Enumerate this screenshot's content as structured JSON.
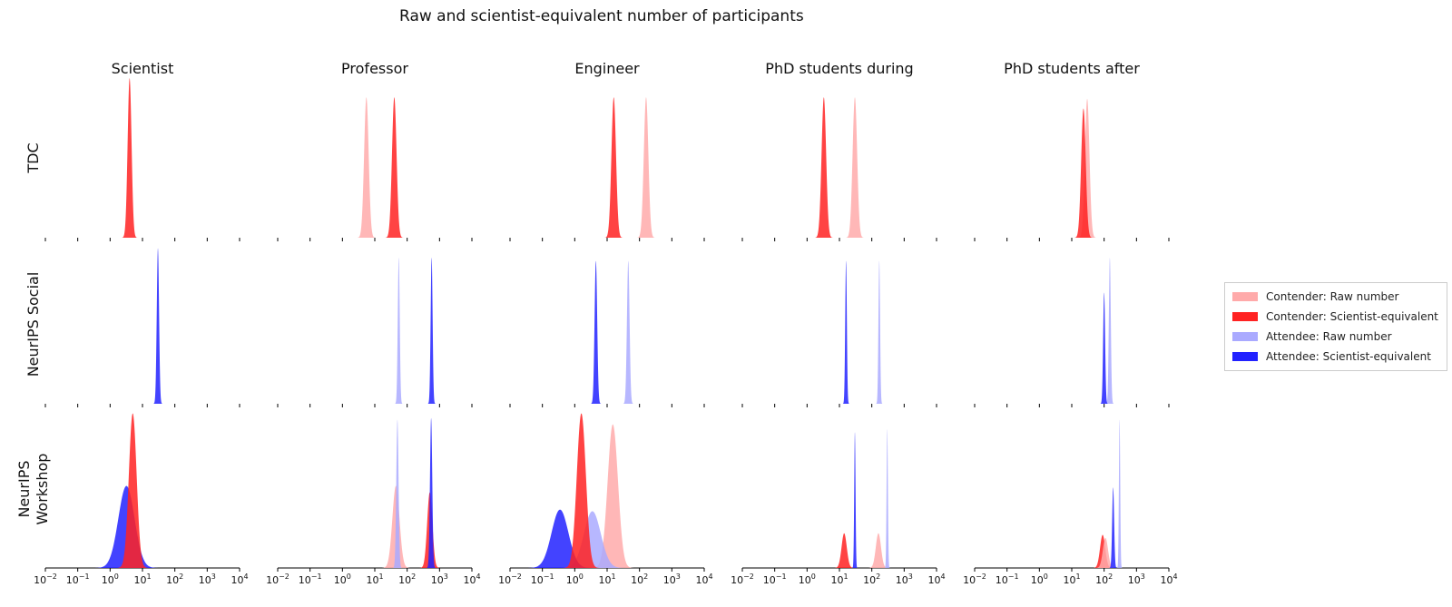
{
  "title": "Raw and scientist-equivalent number of participants",
  "colors": {
    "contender_raw": "#ffaaaa",
    "contender_sci": "#ff2222",
    "attendee_raw": "#aaaaff",
    "attendee_sci": "#2222ff"
  },
  "legend": [
    {
      "label": "Contender: Raw number",
      "color": "#ffaaaa"
    },
    {
      "label": "Contender: Scientist-equivalent",
      "color": "#ff2222"
    },
    {
      "label": "Attendee: Raw number",
      "color": "#aaaaff"
    },
    {
      "label": "Attendee: Scientist-equivalent",
      "color": "#2222ff"
    }
  ],
  "chart_data": {
    "type": "area",
    "x_scale": "log",
    "xlim": [
      0.01,
      10000
    ],
    "x_ticks": [
      0.01,
      0.1,
      1,
      10,
      100,
      1000,
      10000
    ],
    "x_tick_labels": [
      {
        "base": "10",
        "exp": "−2"
      },
      {
        "base": "10",
        "exp": "−1"
      },
      {
        "base": "10",
        "exp": "0"
      },
      {
        "base": "10",
        "exp": "1"
      },
      {
        "base": "10",
        "exp": "2"
      },
      {
        "base": "10",
        "exp": "3"
      },
      {
        "base": "10",
        "exp": "4"
      }
    ],
    "columns": [
      "Scientist",
      "Professor",
      "Engineer",
      "PhD students during",
      "PhD students after"
    ],
    "rows": [
      "TDC",
      "NeurIPS Social",
      "NeurIPS Workshop"
    ],
    "grid": false,
    "legend_position": "right",
    "panels": [
      {
        "row": 0,
        "col": 0,
        "curves": [
          {
            "series": "Contender: Scientist-equivalent",
            "mode": 4.0,
            "width": 0.06,
            "height": 1.0
          }
        ]
      },
      {
        "row": 0,
        "col": 1,
        "curves": [
          {
            "series": "Contender: Raw number",
            "mode": 5.5,
            "width": 0.07,
            "height": 0.88
          },
          {
            "series": "Contender: Scientist-equivalent",
            "mode": 40,
            "width": 0.07,
            "height": 0.88
          }
        ]
      },
      {
        "row": 0,
        "col": 2,
        "curves": [
          {
            "series": "Contender: Raw number",
            "mode": 160,
            "width": 0.07,
            "height": 0.88
          },
          {
            "series": "Contender: Scientist-equivalent",
            "mode": 16,
            "width": 0.07,
            "height": 0.88
          }
        ]
      },
      {
        "row": 0,
        "col": 3,
        "curves": [
          {
            "series": "Contender: Raw number",
            "mode": 30,
            "width": 0.07,
            "height": 0.88
          },
          {
            "series": "Contender: Scientist-equivalent",
            "mode": 3.3,
            "width": 0.07,
            "height": 0.88
          }
        ]
      },
      {
        "row": 0,
        "col": 4,
        "curves": [
          {
            "series": "Contender: Raw number",
            "mode": 30,
            "width": 0.07,
            "height": 0.87
          },
          {
            "series": "Contender: Scientist-equivalent",
            "mode": 23,
            "width": 0.07,
            "height": 0.81
          }
        ]
      },
      {
        "row": 1,
        "col": 0,
        "curves": [
          {
            "series": "Attendee: Scientist-equivalent",
            "mode": 30,
            "width": 0.035,
            "height": 0.98
          }
        ]
      },
      {
        "row": 1,
        "col": 1,
        "curves": [
          {
            "series": "Attendee: Raw number",
            "mode": 55,
            "width": 0.03,
            "height": 0.92
          },
          {
            "series": "Attendee: Scientist-equivalent",
            "mode": 570,
            "width": 0.03,
            "height": 0.92
          }
        ]
      },
      {
        "row": 1,
        "col": 2,
        "curves": [
          {
            "series": "Attendee: Raw number",
            "mode": 45,
            "width": 0.04,
            "height": 0.9
          },
          {
            "series": "Attendee: Scientist-equivalent",
            "mode": 4.5,
            "width": 0.04,
            "height": 0.9
          }
        ]
      },
      {
        "row": 1,
        "col": 3,
        "curves": [
          {
            "series": "Attendee: Raw number",
            "mode": 170,
            "width": 0.025,
            "height": 0.9
          },
          {
            "series": "Attendee: Scientist-equivalent",
            "mode": 16,
            "width": 0.025,
            "height": 0.9
          }
        ]
      },
      {
        "row": 1,
        "col": 4,
        "curves": [
          {
            "series": "Attendee: Raw number",
            "mode": 150,
            "width": 0.03,
            "height": 0.92
          },
          {
            "series": "Attendee: Scientist-equivalent",
            "mode": 100,
            "width": 0.03,
            "height": 0.7
          }
        ]
      },
      {
        "row": 2,
        "col": 0,
        "curves": [
          {
            "series": "Attendee: Scientist-equivalent",
            "mode": 3.2,
            "width": 0.25,
            "height": 0.52
          },
          {
            "series": "Contender: Scientist-equivalent",
            "mode": 5.0,
            "width": 0.12,
            "height": 0.98
          }
        ]
      },
      {
        "row": 2,
        "col": 1,
        "curves": [
          {
            "series": "Contender: Raw number",
            "mode": 45,
            "width": 0.11,
            "height": 0.52
          },
          {
            "series": "Contender: Scientist-equivalent",
            "mode": 500,
            "width": 0.08,
            "height": 0.48
          },
          {
            "series": "Attendee: Raw number",
            "mode": 50,
            "width": 0.035,
            "height": 0.94
          },
          {
            "series": "Attendee: Scientist-equivalent",
            "mode": 550,
            "width": 0.035,
            "height": 0.95
          }
        ]
      },
      {
        "row": 2,
        "col": 2,
        "curves": [
          {
            "series": "Contender: Raw number",
            "mode": 15,
            "width": 0.16,
            "height": 0.91
          },
          {
            "series": "Attendee: Raw number",
            "mode": 3.5,
            "width": 0.26,
            "height": 0.36
          },
          {
            "series": "Attendee: Scientist-equivalent",
            "mode": 0.35,
            "width": 0.26,
            "height": 0.37
          },
          {
            "series": "Contender: Scientist-equivalent",
            "mode": 1.6,
            "width": 0.14,
            "height": 0.98
          }
        ]
      },
      {
        "row": 2,
        "col": 3,
        "curves": [
          {
            "series": "Contender: Scientist-equivalent",
            "mode": 14,
            "width": 0.08,
            "height": 0.22
          },
          {
            "series": "Contender: Raw number",
            "mode": 160,
            "width": 0.08,
            "height": 0.22
          },
          {
            "series": "Attendee: Raw number",
            "mode": 300,
            "width": 0.02,
            "height": 0.88
          },
          {
            "series": "Attendee: Scientist-equivalent",
            "mode": 30,
            "width": 0.02,
            "height": 0.86
          }
        ]
      },
      {
        "row": 2,
        "col": 4,
        "curves": [
          {
            "series": "Contender: Scientist-equivalent",
            "mode": 90,
            "width": 0.08,
            "height": 0.21
          },
          {
            "series": "Contender: Raw number",
            "mode": 110,
            "width": 0.08,
            "height": 0.19
          },
          {
            "series": "Attendee: Scientist-equivalent",
            "mode": 190,
            "width": 0.03,
            "height": 0.51
          },
          {
            "series": "Attendee: Raw number",
            "mode": 300,
            "width": 0.02,
            "height": 0.94
          }
        ]
      }
    ]
  }
}
